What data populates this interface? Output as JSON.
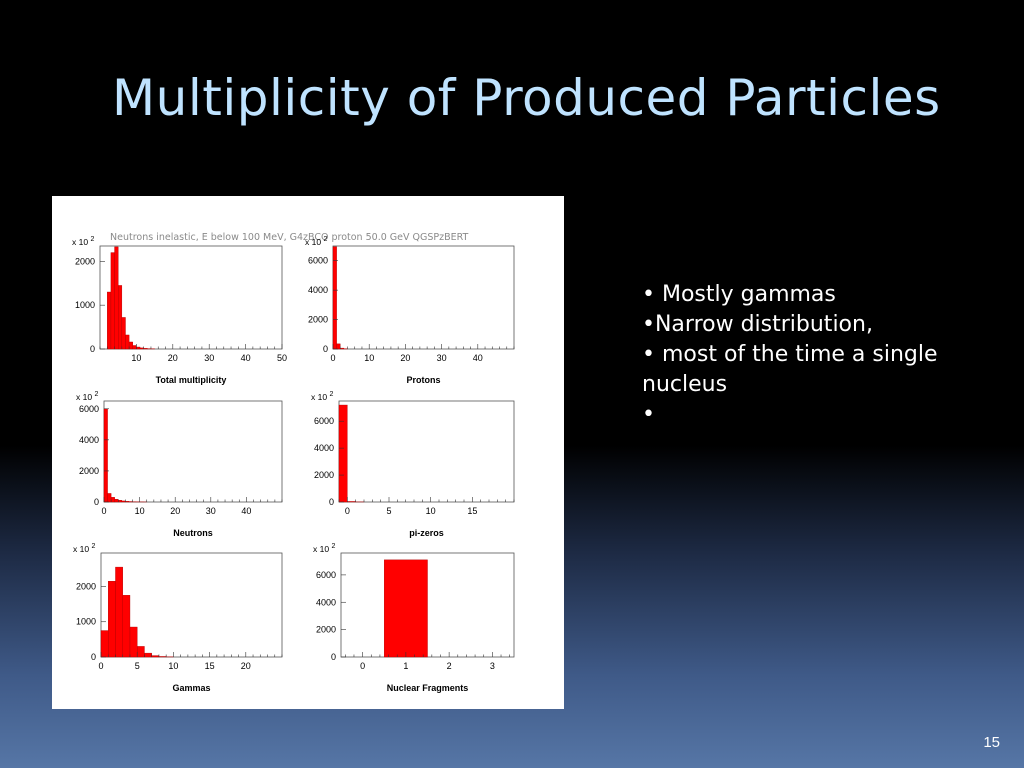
{
  "slide": {
    "title": "Multiplicity of Produced Particles",
    "page_number": "15",
    "bullets": [
      "• Mostly gammas",
      "•Narrow distribution,",
      "• most of the time a single nucleus",
      "•"
    ]
  },
  "figure": {
    "header": "Neutrons inelastic, E below 100 MeV,  G4zBCO proton 50.0 GeV QGSPzBERT",
    "bar_color": "#ff0000"
  },
  "chart_data": [
    {
      "type": "bar",
      "title": "Total multiplicity",
      "scale_label": "x 10",
      "scale_exp": "2",
      "xlim": [
        0,
        50
      ],
      "ylim": [
        0,
        2350
      ],
      "xticks": [
        10,
        20,
        30,
        40,
        50
      ],
      "yticks": [
        0,
        1000,
        2000
      ],
      "bin_width": 1,
      "bins": [
        [
          2,
          1300
        ],
        [
          3,
          2200
        ],
        [
          4,
          2330
        ],
        [
          5,
          1450
        ],
        [
          6,
          720
        ],
        [
          7,
          320
        ],
        [
          8,
          160
        ],
        [
          9,
          80
        ],
        [
          10,
          45
        ],
        [
          11,
          25
        ],
        [
          12,
          15
        ],
        [
          13,
          8
        ],
        [
          14,
          5
        ]
      ]
    },
    {
      "type": "bar",
      "title": "Protons",
      "scale_label": "x 10",
      "scale_exp": "2",
      "xlim": [
        0,
        50
      ],
      "ylim": [
        0,
        7000
      ],
      "xticks": [
        0,
        10,
        20,
        30,
        40
      ],
      "yticks": [
        0,
        2000,
        4000,
        6000
      ],
      "bin_width": 1,
      "bins": [
        [
          0,
          6950
        ],
        [
          1,
          350
        ],
        [
          2,
          60
        ],
        [
          3,
          15
        ]
      ]
    },
    {
      "type": "bar",
      "title": "Neutrons",
      "scale_label": "x 10",
      "scale_exp": "2",
      "xlim": [
        0,
        50
      ],
      "ylim": [
        0,
        6500
      ],
      "xticks": [
        0,
        10,
        20,
        30,
        40
      ],
      "yticks": [
        0,
        2000,
        4000,
        6000
      ],
      "bin_width": 1,
      "bins": [
        [
          0,
          6000
        ],
        [
          1,
          550
        ],
        [
          2,
          300
        ],
        [
          3,
          180
        ],
        [
          4,
          110
        ],
        [
          5,
          70
        ],
        [
          6,
          45
        ],
        [
          7,
          30
        ],
        [
          8,
          20
        ],
        [
          9,
          12
        ],
        [
          10,
          8
        ],
        [
          11,
          5
        ]
      ]
    },
    {
      "type": "bar",
      "title": "pi-zeros",
      "scale_label": "x 10",
      "scale_exp": "2",
      "xlim": [
        -1,
        20
      ],
      "ylim": [
        0,
        7500
      ],
      "xticks": [
        0,
        5,
        10,
        15
      ],
      "yticks": [
        0,
        2000,
        4000,
        6000
      ],
      "bin_width": 1,
      "bins": [
        [
          -1,
          7200
        ],
        [
          0,
          40
        ],
        [
          1,
          8
        ]
      ]
    },
    {
      "type": "bar",
      "title": "Gammas",
      "scale_label": "x 10",
      "scale_exp": "2",
      "xlim": [
        0,
        25
      ],
      "ylim": [
        0,
        2950
      ],
      "xticks": [
        0,
        5,
        10,
        15,
        20
      ],
      "yticks": [
        0,
        1000,
        2000
      ],
      "bin_width": 1,
      "bins": [
        [
          0,
          750
        ],
        [
          1,
          2150
        ],
        [
          2,
          2550
        ],
        [
          3,
          1750
        ],
        [
          4,
          850
        ],
        [
          5,
          300
        ],
        [
          6,
          110
        ],
        [
          7,
          40
        ],
        [
          8,
          15
        ],
        [
          9,
          5
        ]
      ]
    },
    {
      "type": "bar",
      "title": "Nuclear Fragments",
      "scale_label": "x 10",
      "scale_exp": "2",
      "xlim": [
        -0.5,
        3.5
      ],
      "ylim": [
        0,
        7600
      ],
      "xticks": [
        0,
        1,
        2,
        3
      ],
      "yticks": [
        0,
        2000,
        4000,
        6000
      ],
      "bin_width": 1,
      "bins": [
        [
          0.5,
          7100
        ]
      ]
    }
  ]
}
